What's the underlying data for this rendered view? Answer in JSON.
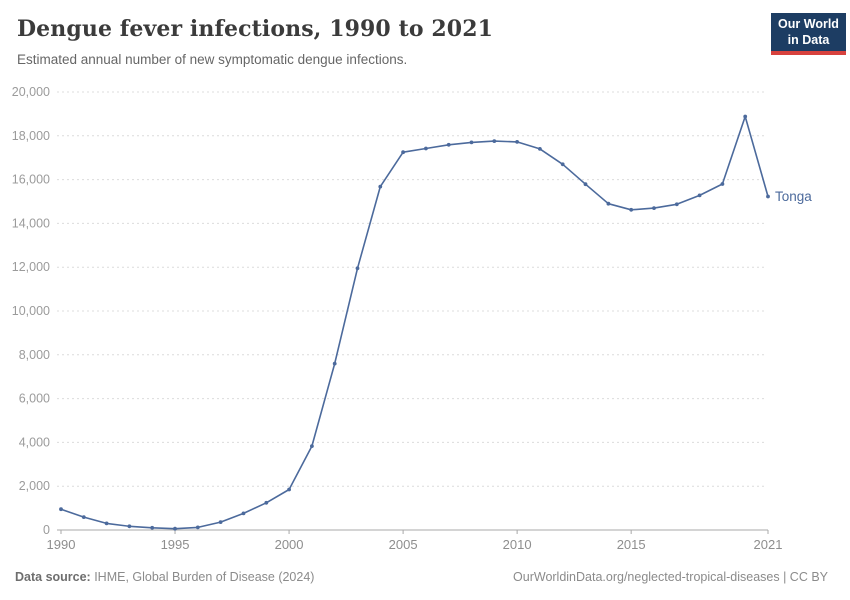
{
  "header": {
    "title": "Dengue fever infections, 1990 to 2021",
    "subtitle": "Estimated annual number of new symptomatic dengue infections.",
    "logo_line1": "Our World",
    "logo_line2": "in Data"
  },
  "chart_data": {
    "type": "line",
    "title": "Dengue fever infections, 1990 to 2021",
    "subtitle": "Estimated annual number of new symptomatic dengue infections.",
    "x": [
      1990,
      1991,
      1992,
      1993,
      1994,
      1995,
      1996,
      1997,
      1998,
      1999,
      2000,
      2001,
      2002,
      2003,
      2004,
      2005,
      2006,
      2007,
      2008,
      2009,
      2010,
      2011,
      2012,
      2013,
      2014,
      2015,
      2016,
      2017,
      2018,
      2019,
      2020,
      2021
    ],
    "series": [
      {
        "name": "Tonga",
        "color": "#4C6A9C",
        "values": [
          950,
          590,
          300,
          170,
          100,
          60,
          120,
          360,
          760,
          1240,
          1850,
          3830,
          7600,
          11950,
          15680,
          17250,
          17420,
          17590,
          17700,
          17760,
          17720,
          17400,
          16700,
          15790,
          14900,
          14620,
          14700,
          14870,
          15280,
          15800,
          18880,
          15230
        ]
      }
    ],
    "xlabel": "",
    "ylabel": "",
    "ylim": [
      0,
      20000
    ],
    "ytick_step": 2000,
    "ytick_labels": [
      "0",
      "2,000",
      "4,000",
      "6,000",
      "8,000",
      "10,000",
      "12,000",
      "14,000",
      "16,000",
      "18,000",
      "20,000"
    ],
    "xticks": [
      1990,
      1995,
      2000,
      2005,
      2010,
      2015,
      2021
    ],
    "xtick_labels": [
      "1990",
      "1995",
      "2000",
      "2005",
      "2010",
      "2015",
      "2021"
    ],
    "grid": "horizontal dashed",
    "legend": "end-of-line entity label",
    "entity_label": "Tonga"
  },
  "footer": {
    "source_label": "Data source:",
    "source_text": " IHME, Global Burden of Disease (2024)",
    "credit": "OurWorldinData.org/neglected-tropical-diseases | CC BY"
  },
  "colors": {
    "line": "#4C6A9C",
    "grid": "#dcdcdc",
    "axis": "#a8a8a8",
    "ytick_text": "#9b9b9b",
    "xtick_text": "#8e8e8e",
    "logo_bg": "#1d3d63",
    "logo_bar": "#d7413d"
  }
}
